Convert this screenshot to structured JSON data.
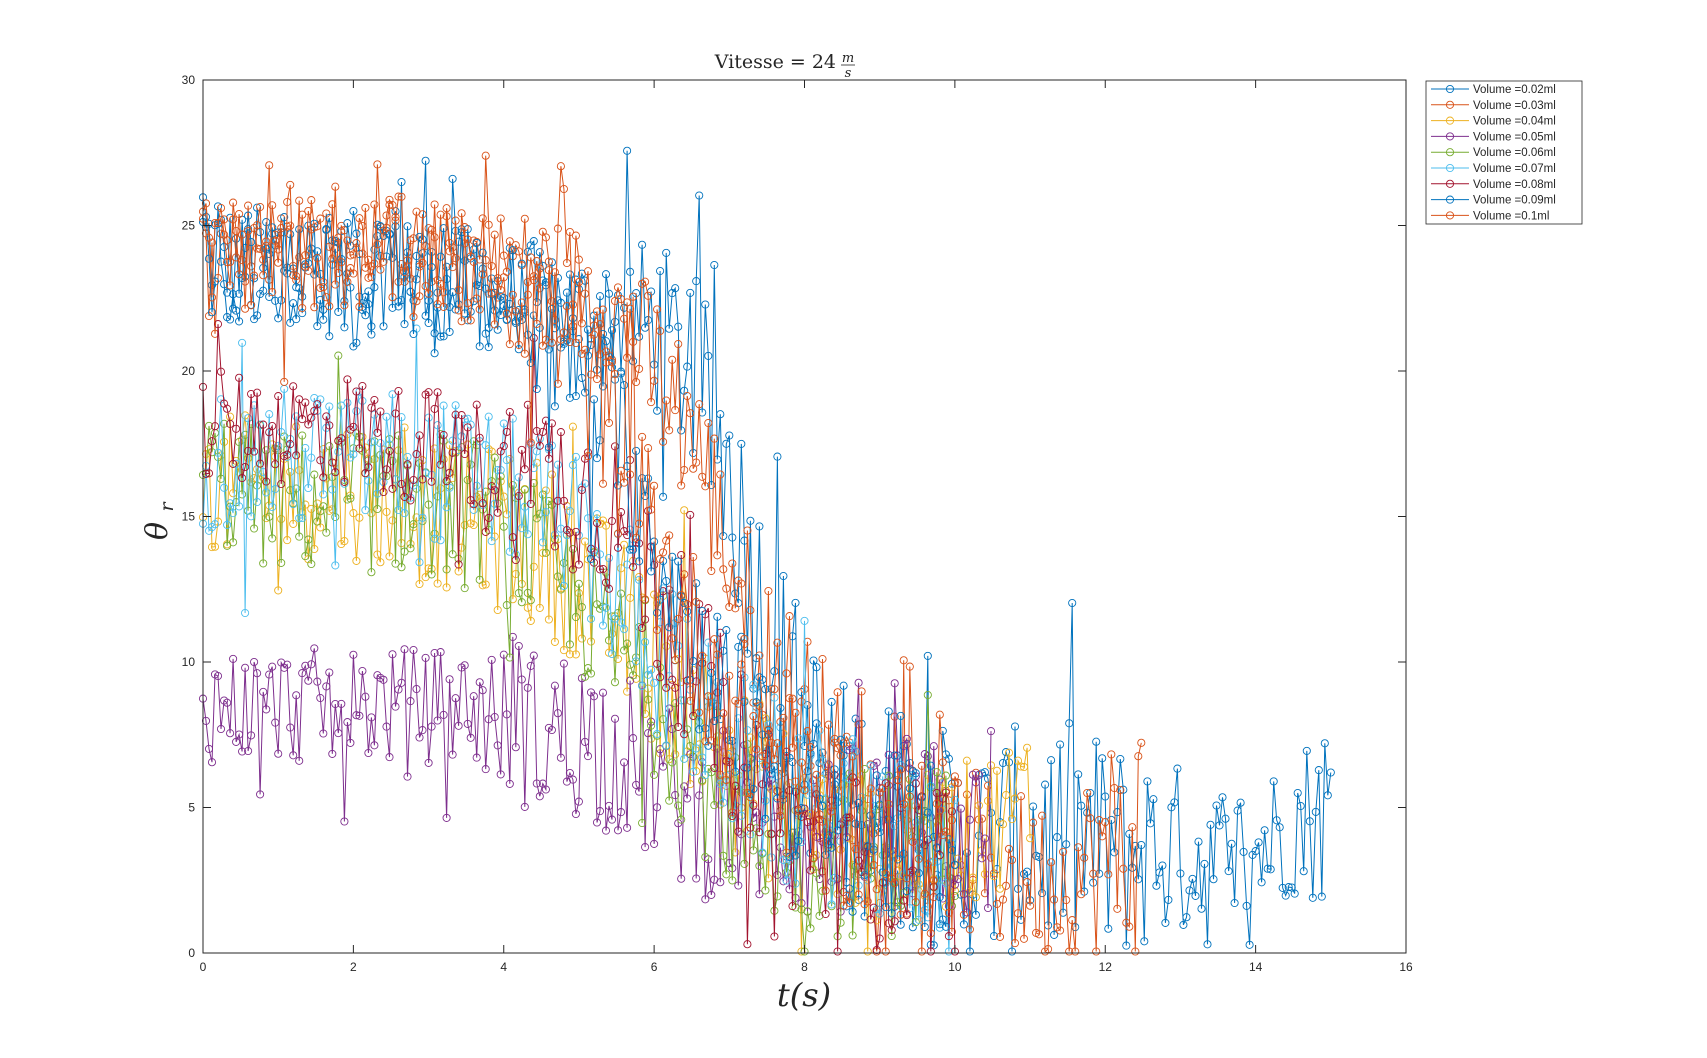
{
  "chart_data": {
    "type": "line",
    "title_main": "Vitesse = 24",
    "title_unit_num": "m",
    "title_unit_den": "s",
    "xlabel": "t(s)",
    "ylabel_sym": "θ",
    "ylabel_sub": "r",
    "xlim": [
      0,
      16
    ],
    "ylim": [
      0,
      30
    ],
    "xticks": [
      0,
      2,
      4,
      6,
      8,
      10,
      12,
      14,
      16
    ],
    "yticks": [
      0,
      5,
      10,
      15,
      20,
      25,
      30
    ],
    "grid": false,
    "legend_position": "outside-top-right",
    "marker": "circle",
    "series": [
      {
        "name": "Volume =0.02ml",
        "color": "#0072BD",
        "x": [
          0,
          0.5,
          1,
          1.5,
          2,
          2.5,
          3,
          3.5,
          4,
          4.5,
          5,
          5.5,
          6,
          6.5,
          7,
          7.5,
          8,
          8.5,
          9,
          9.5,
          10,
          10.5,
          11,
          11.5,
          12,
          12.5,
          13,
          13.5,
          14,
          14.5,
          15
        ],
        "y": [
          24.5,
          23.5,
          24,
          23.5,
          22.5,
          24,
          22.5,
          23,
          22.5,
          22.5,
          22,
          22,
          21.5,
          20,
          16.5,
          11,
          7.5,
          5.5,
          5,
          4.5,
          3.5,
          3.5,
          4,
          4,
          3.5,
          3.5,
          3.5,
          3,
          3.5,
          4.5,
          5
        ],
        "amp": [
          2,
          2,
          2,
          2,
          2,
          2,
          2,
          2,
          2,
          2,
          2,
          2.5,
          3,
          3.5,
          4,
          4,
          4,
          4,
          4,
          4,
          4,
          4,
          4,
          4,
          4,
          3.5,
          3,
          3,
          2.5,
          2.5,
          3.5
        ]
      },
      {
        "name": "Volume =0.03ml",
        "color": "#D95319",
        "x": [
          0,
          0.5,
          1,
          1.5,
          2,
          2.5,
          3,
          3.5,
          4,
          4.5,
          5,
          5.5,
          6,
          6.5,
          7,
          7.5,
          8,
          8.5,
          9,
          9.5,
          10,
          10.5,
          11,
          11.5,
          12,
          12.5
        ],
        "y": [
          24.5,
          24.5,
          24.5,
          24.5,
          24.5,
          24.5,
          24,
          24,
          24,
          23.5,
          23,
          22,
          20,
          18,
          13.5,
          10,
          8,
          6,
          4.5,
          4,
          3.5,
          3,
          2.5,
          2.5,
          3,
          4
        ],
        "amp": [
          1.5,
          1.5,
          1.5,
          1.5,
          1.5,
          1.5,
          1.5,
          1.5,
          1.5,
          2,
          2,
          2,
          3,
          3,
          3,
          3,
          3.5,
          3,
          3,
          3,
          3,
          3,
          3,
          2.5,
          4.5,
          4.5
        ]
      },
      {
        "name": "Volume =0.04ml",
        "color": "#EDB120",
        "x": [
          0,
          0.5,
          1,
          1.5,
          2,
          2.5,
          3,
          3.5,
          4,
          4.5,
          5,
          5.5,
          6,
          6.5,
          7,
          7.5,
          8,
          8.5,
          9,
          9.5,
          10,
          10.5,
          11
        ],
        "y": [
          16,
          16,
          16,
          16,
          16,
          15.5,
          15,
          15,
          14.5,
          14,
          13,
          11.5,
          10,
          8.5,
          6.5,
          5.5,
          4.5,
          4,
          3.5,
          3.5,
          4,
          4.5,
          5.5
        ],
        "amp": [
          2.5,
          2.5,
          2.5,
          2.5,
          2.5,
          2.5,
          2.5,
          2.5,
          3,
          3,
          3,
          3,
          3,
          3,
          3,
          3,
          3,
          2.5,
          2.5,
          2.5,
          2.5,
          2.5,
          2.5
        ]
      },
      {
        "name": "Volume =0.05ml",
        "color": "#7E2F8E",
        "x": [
          0,
          0.5,
          1,
          1.5,
          2,
          2.5,
          3,
          3.5,
          4,
          4.5,
          5,
          5.5,
          6,
          6.5,
          7,
          7.5,
          8,
          8.5,
          9,
          9.5,
          10,
          10.5
        ],
        "y": [
          8.5,
          8.5,
          8.5,
          8.5,
          8.5,
          8.5,
          8.5,
          8.5,
          8,
          7.5,
          7.5,
          7,
          6,
          5,
          4.5,
          4.5,
          4,
          4,
          4.5,
          4.5,
          4,
          3.5
        ],
        "amp": [
          2,
          2,
          2,
          2,
          2,
          2,
          2,
          2,
          2.5,
          3,
          3,
          3,
          3,
          3,
          3,
          3,
          3,
          3,
          3,
          3,
          3,
          3
        ]
      },
      {
        "name": "Volume =0.06ml",
        "color": "#77AC30",
        "x": [
          0,
          0.5,
          1,
          1.5,
          2,
          2.5,
          3,
          3.5,
          4,
          4.5,
          5,
          5.5,
          6,
          6.5,
          7,
          7.5,
          8,
          8.5,
          9,
          9.5,
          10
        ],
        "y": [
          16.5,
          16,
          15.5,
          15.5,
          15.5,
          15.5,
          15.5,
          15.5,
          14.5,
          13.5,
          12,
          10.5,
          9,
          7,
          5,
          4,
          3.5,
          3.5,
          3.5,
          3.5,
          4
        ],
        "amp": [
          2.5,
          2.5,
          2.5,
          2.5,
          2.5,
          2.5,
          2.5,
          2.5,
          2.5,
          2.5,
          2.5,
          2.5,
          3,
          3,
          3,
          3,
          3,
          3,
          3,
          3,
          2.5
        ]
      },
      {
        "name": "Volume =0.07ml",
        "color": "#4DBEEE",
        "x": [
          0,
          0.5,
          1,
          1.5,
          2,
          2.5,
          3,
          3.5,
          4,
          4.5,
          5,
          5.5,
          6,
          6.5,
          7,
          7.5,
          8,
          8.5,
          9,
          9.5,
          10
        ],
        "y": [
          17,
          17,
          17,
          17,
          17,
          17,
          16.5,
          16.5,
          16,
          15.5,
          14.5,
          12.5,
          10.5,
          8.5,
          7,
          6,
          5,
          4.5,
          4,
          3.5,
          3.5
        ],
        "amp": [
          2.5,
          2.5,
          2.5,
          2.5,
          2.5,
          2.5,
          2.5,
          2.5,
          2.5,
          2.5,
          2.5,
          3,
          3,
          3,
          3,
          3,
          3,
          3,
          3,
          3,
          3
        ]
      },
      {
        "name": "Volume =0.08ml",
        "color": "#A2142F",
        "x": [
          0,
          0.5,
          1,
          1.5,
          2,
          2.5,
          3,
          3.5,
          4,
          4.5,
          5,
          5.5,
          6,
          6.5,
          7,
          7.5,
          8,
          8.5,
          9,
          9.5,
          10
        ],
        "y": [
          18,
          18,
          18,
          18,
          18,
          17.5,
          17.5,
          17,
          16.5,
          16.5,
          16,
          15,
          12.5,
          10,
          7.5,
          5.5,
          4,
          3.5,
          3,
          3,
          3
        ],
        "amp": [
          2,
          2,
          2,
          2,
          2,
          2,
          2,
          2,
          3,
          3,
          3,
          3,
          3,
          3,
          3,
          3,
          3,
          3,
          3,
          3,
          3
        ]
      },
      {
        "name": "Volume =0.09ml",
        "color": "#0072BD",
        "x": [
          0,
          0.5,
          1,
          1.5,
          2,
          2.5,
          3,
          3.5,
          4,
          4.5,
          5,
          5.5,
          6,
          6.5,
          7,
          7.5,
          8,
          8.5,
          9,
          9.5,
          10
        ],
        "y": [
          24,
          23.5,
          23.5,
          23.5,
          23.5,
          23.5,
          23,
          23,
          22.5,
          21.5,
          20,
          18,
          14.5,
          11,
          8.5,
          7,
          5.5,
          4.5,
          4,
          3.5,
          3.5
        ],
        "amp": [
          2,
          2,
          2,
          2,
          2,
          2,
          2,
          2,
          2,
          2.5,
          2.5,
          3,
          3,
          3,
          3,
          3,
          3,
          3,
          3,
          3,
          3
        ]
      },
      {
        "name": "Volume =0.1ml",
        "color": "#D95319",
        "x": [
          0,
          0.5,
          1,
          1.5,
          2,
          2.5,
          3,
          3.5,
          4,
          4.5,
          5,
          5.5,
          6,
          6.5,
          7,
          7.5,
          8,
          8.5,
          9,
          9.5,
          10
        ],
        "y": [
          24,
          24,
          24,
          24,
          24,
          24,
          24,
          23.5,
          23,
          22,
          20.5,
          17.5,
          14,
          11,
          8.5,
          7,
          5.5,
          4.5,
          4,
          3.5,
          3.5
        ],
        "amp": [
          2,
          2,
          2,
          2,
          2,
          2,
          2,
          2,
          2,
          2.5,
          3,
          3,
          3,
          3,
          3,
          3,
          3,
          3,
          3,
          3,
          3
        ]
      }
    ]
  }
}
